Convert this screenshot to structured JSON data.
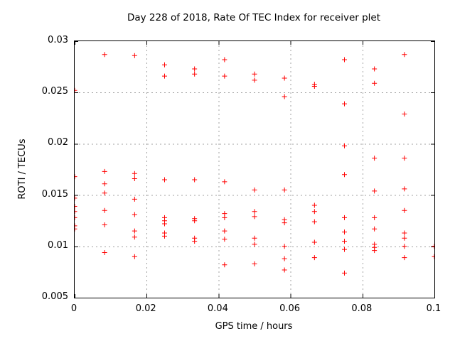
{
  "title": "Day 228 of 2018, Rate Of TEC Index for receiver plet",
  "colors": {
    "marker": "#ff0000",
    "grid": "#a0a0a0",
    "axis": "#000000",
    "background": "#ffffff"
  },
  "chart_data": {
    "type": "scatter",
    "title": "Day 228 of 2018, Rate Of TEC Index for receiver plet",
    "xlabel": "GPS time / hours",
    "ylabel": "ROTI / TECUs",
    "xlim": [
      0,
      0.1
    ],
    "ylim": [
      0.005,
      0.03
    ],
    "xticks": [
      0,
      0.02,
      0.04,
      0.06,
      0.08,
      0.1
    ],
    "xtick_labels": [
      "0",
      "0.02",
      "0.04",
      "0.06",
      "0.08",
      "0.1"
    ],
    "yticks": [
      0.005,
      0.01,
      0.015,
      0.02,
      0.025,
      0.03
    ],
    "ytick_labels": [
      "0.005",
      "0.01",
      "0.015",
      "0.02",
      "0.025",
      "0.03"
    ],
    "grid": true,
    "legend": "none",
    "marker": "plus",
    "points": [
      [
        0,
        0.0252
      ],
      [
        0,
        0.0168
      ],
      [
        0,
        0.0147
      ],
      [
        0,
        0.0139
      ],
      [
        0,
        0.0134
      ],
      [
        0,
        0.0128
      ],
      [
        0,
        0.012
      ],
      [
        0,
        0.0117
      ],
      [
        0.00833,
        0.0287
      ],
      [
        0.00833,
        0.0173
      ],
      [
        0.00833,
        0.0161
      ],
      [
        0.00833,
        0.0152
      ],
      [
        0.00833,
        0.0135
      ],
      [
        0.00833,
        0.0121
      ],
      [
        0.00833,
        0.0094
      ],
      [
        0.01667,
        0.0286
      ],
      [
        0.01667,
        0.0171
      ],
      [
        0.01667,
        0.0166
      ],
      [
        0.01667,
        0.0146
      ],
      [
        0.01667,
        0.0131
      ],
      [
        0.01667,
        0.0115
      ],
      [
        0.01667,
        0.0109
      ],
      [
        0.01667,
        0.009
      ],
      [
        0.025,
        0.0277
      ],
      [
        0.025,
        0.0266
      ],
      [
        0.025,
        0.0165
      ],
      [
        0.025,
        0.0128
      ],
      [
        0.025,
        0.0125
      ],
      [
        0.025,
        0.0122
      ],
      [
        0.025,
        0.0113
      ],
      [
        0.025,
        0.011
      ],
      [
        0.03333,
        0.0273
      ],
      [
        0.03333,
        0.0268
      ],
      [
        0.03333,
        0.0165
      ],
      [
        0.03333,
        0.0127
      ],
      [
        0.03333,
        0.0125
      ],
      [
        0.03333,
        0.0108
      ],
      [
        0.03333,
        0.0105
      ],
      [
        0.04167,
        0.0282
      ],
      [
        0.04167,
        0.0266
      ],
      [
        0.04167,
        0.0163
      ],
      [
        0.04167,
        0.0132
      ],
      [
        0.04167,
        0.0128
      ],
      [
        0.04167,
        0.0115
      ],
      [
        0.04167,
        0.0107
      ],
      [
        0.04167,
        0.0082
      ],
      [
        0.05,
        0.0268
      ],
      [
        0.05,
        0.0262
      ],
      [
        0.05,
        0.0155
      ],
      [
        0.05,
        0.0134
      ],
      [
        0.05,
        0.0129
      ],
      [
        0.05,
        0.0108
      ],
      [
        0.05,
        0.0102
      ],
      [
        0.05,
        0.0083
      ],
      [
        0.05833,
        0.0264
      ],
      [
        0.05833,
        0.0246
      ],
      [
        0.05833,
        0.0155
      ],
      [
        0.05833,
        0.0126
      ],
      [
        0.05833,
        0.0123
      ],
      [
        0.05833,
        0.01
      ],
      [
        0.05833,
        0.0088
      ],
      [
        0.05833,
        0.0077
      ],
      [
        0.06667,
        0.0258
      ],
      [
        0.06667,
        0.0256
      ],
      [
        0.06667,
        0.014
      ],
      [
        0.06667,
        0.0134
      ],
      [
        0.06667,
        0.0124
      ],
      [
        0.06667,
        0.0104
      ],
      [
        0.06667,
        0.0089
      ],
      [
        0.075,
        0.0282
      ],
      [
        0.075,
        0.0239
      ],
      [
        0.075,
        0.0198
      ],
      [
        0.075,
        0.017
      ],
      [
        0.075,
        0.0128
      ],
      [
        0.075,
        0.0114
      ],
      [
        0.075,
        0.0105
      ],
      [
        0.075,
        0.0097
      ],
      [
        0.075,
        0.0074
      ],
      [
        0.08333,
        0.0273
      ],
      [
        0.08333,
        0.0259
      ],
      [
        0.08333,
        0.0186
      ],
      [
        0.08333,
        0.0154
      ],
      [
        0.08333,
        0.0128
      ],
      [
        0.08333,
        0.0117
      ],
      [
        0.08333,
        0.0102
      ],
      [
        0.08333,
        0.0099
      ],
      [
        0.08333,
        0.0096
      ],
      [
        0.09167,
        0.0287
      ],
      [
        0.09167,
        0.0229
      ],
      [
        0.09167,
        0.0186
      ],
      [
        0.09167,
        0.0156
      ],
      [
        0.09167,
        0.0135
      ],
      [
        0.09167,
        0.0113
      ],
      [
        0.09167,
        0.0108
      ],
      [
        0.09167,
        0.01
      ],
      [
        0.09167,
        0.0089
      ],
      [
        0.1,
        0.01
      ],
      [
        0.1,
        0.009
      ]
    ]
  }
}
